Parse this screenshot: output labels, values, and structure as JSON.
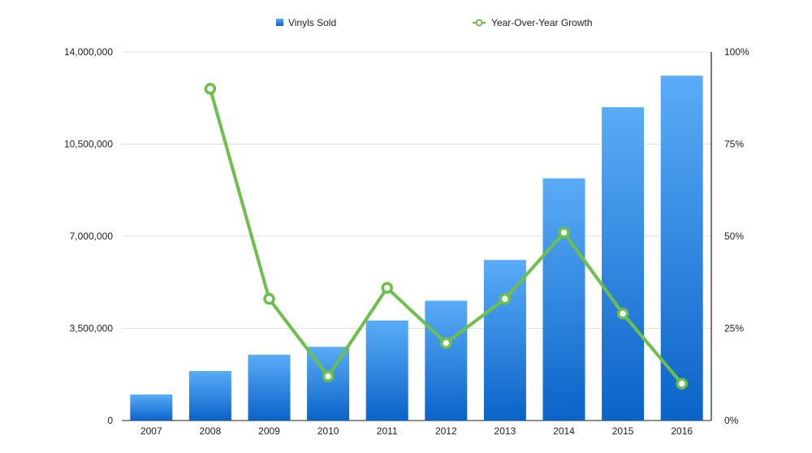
{
  "chart_data": {
    "type": "bar",
    "categories": [
      "2007",
      "2008",
      "2009",
      "2010",
      "2011",
      "2012",
      "2013",
      "2014",
      "2015",
      "2016"
    ],
    "series": [
      {
        "name": "Vinyls Sold",
        "type": "bar",
        "axis": "left",
        "color": "#2a86e0",
        "values": [
          990000,
          1880000,
          2500000,
          2800000,
          3800000,
          4550000,
          6100000,
          9200000,
          11900000,
          13100000
        ]
      },
      {
        "name": "Year-Over-Year Growth",
        "type": "line",
        "axis": "right",
        "color": "#6cc04a",
        "values": [
          null,
          90,
          33,
          12,
          36,
          21,
          33,
          51,
          29,
          10
        ]
      }
    ],
    "y_left": {
      "min": 0,
      "max": 14000000,
      "ticks": [
        "0",
        "3,500,000",
        "7,000,000",
        "10,500,000",
        "14,000,000"
      ],
      "tick_values": [
        0,
        3500000,
        7000000,
        10500000,
        14000000
      ]
    },
    "y_right": {
      "min": 0,
      "max": 100,
      "ticks": [
        "0%",
        "25%",
        "50%",
        "75%",
        "100%"
      ],
      "tick_values": [
        0,
        25,
        50,
        75,
        100
      ]
    },
    "grid": true,
    "legend_position": "top-center",
    "title": "",
    "xlabel": "",
    "ylabel": ""
  }
}
